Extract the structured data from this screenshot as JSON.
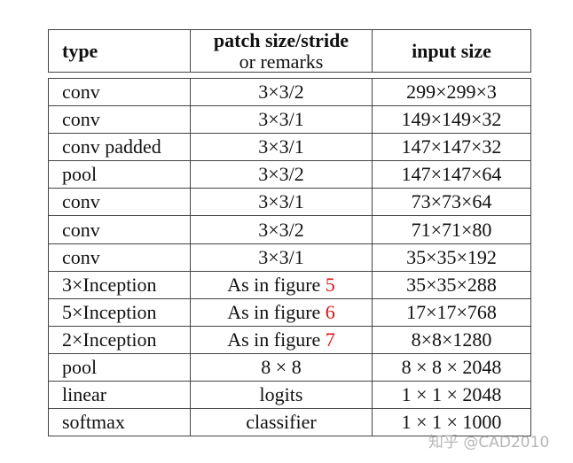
{
  "header": {
    "type": "type",
    "patch_line1": "patch size/stride",
    "patch_line2": "or remarks",
    "input": "input size"
  },
  "rows": [
    {
      "type": "conv",
      "patch": "3×3/2",
      "input": "299×299×3"
    },
    {
      "type": "conv",
      "patch": "3×3/1",
      "input": "149×149×32"
    },
    {
      "type": "conv padded",
      "patch": "3×3/1",
      "input": "147×147×32"
    },
    {
      "type": "pool",
      "patch": "3×3/2",
      "input": "147×147×64"
    },
    {
      "type": "conv",
      "patch": "3×3/1",
      "input": "73×73×64"
    },
    {
      "type": "conv",
      "patch": "3×3/2",
      "input": "71×71×80"
    },
    {
      "type": "conv",
      "patch": "3×3/1",
      "input": "35×35×192"
    },
    {
      "type": "3×Inception",
      "patch": "As in figure ",
      "ref": "5",
      "input": "35×35×288"
    },
    {
      "type": "5×Inception",
      "patch": "As in figure ",
      "ref": "6",
      "input": "17×17×768"
    },
    {
      "type": "2×Inception",
      "patch": "As in figure ",
      "ref": "7",
      "input": "8×8×1280"
    },
    {
      "type": "pool",
      "patch": "8 × 8",
      "input": "8 × 8 × 2048"
    },
    {
      "type": "linear",
      "patch": "logits",
      "input": "1 × 1 × 2048"
    },
    {
      "type": "softmax",
      "patch": "classifier",
      "input": "1 × 1 × 1000"
    }
  ],
  "colors": {
    "reference": "#e01010",
    "border": "#444444"
  },
  "watermark": "知乎 @CAD2010"
}
